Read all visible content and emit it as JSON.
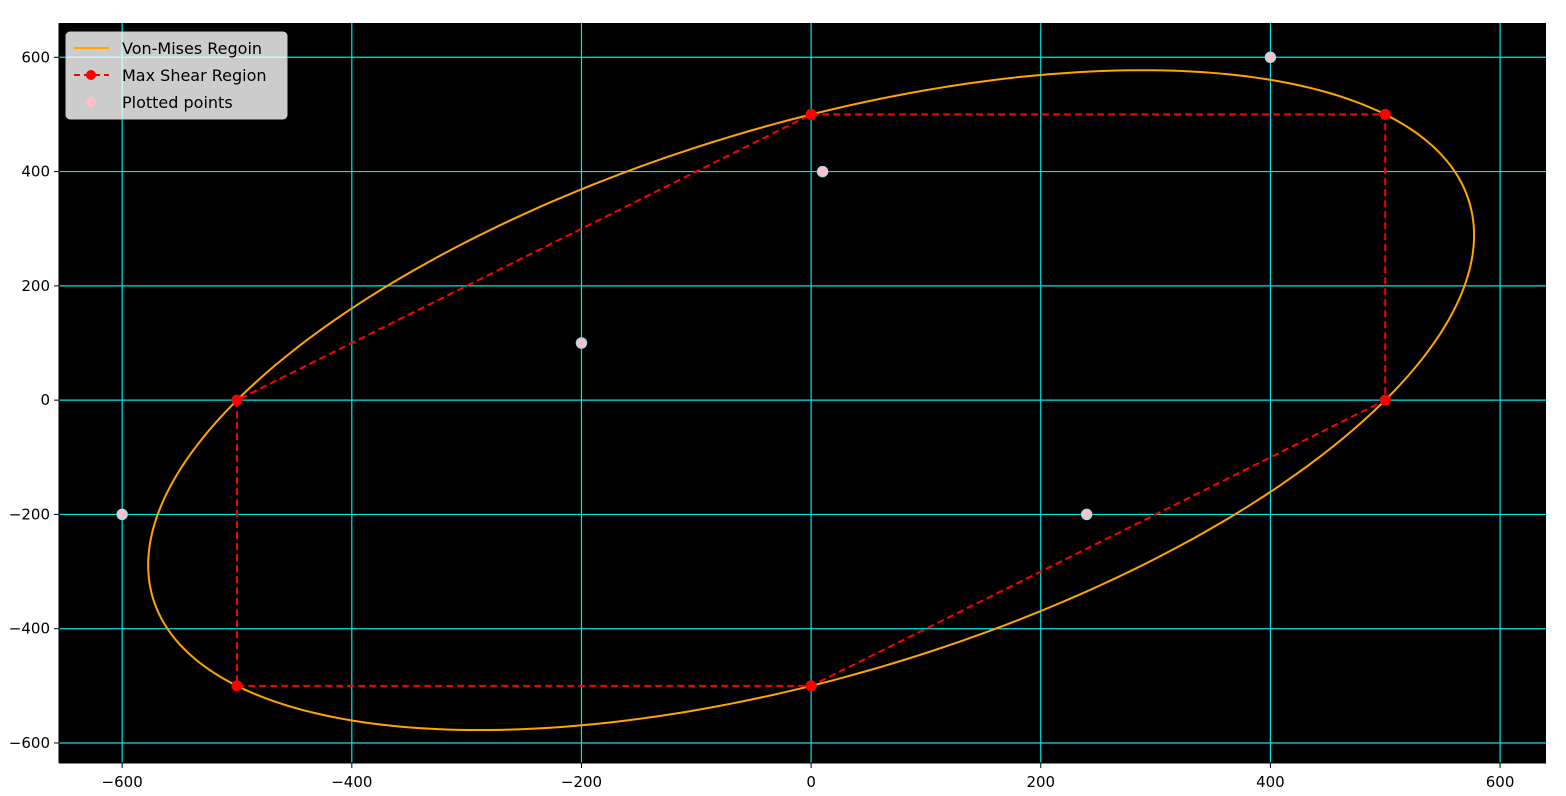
{
  "chart_data": {
    "type": "line",
    "title": "",
    "xlabel": "",
    "ylabel": "",
    "xlim": [
      -655,
      640
    ],
    "ylim": [
      -635,
      660
    ],
    "x_ticks": [
      -600,
      -400,
      -200,
      0,
      200,
      400,
      600
    ],
    "y_ticks": [
      -600,
      -400,
      -200,
      0,
      200,
      400,
      600
    ],
    "x_tick_labels": [
      "−600",
      "−400",
      "−200",
      "0",
      "200",
      "400",
      "600"
    ],
    "y_tick_labels": [
      "−600",
      "−400",
      "−200",
      "0",
      "200",
      "400",
      "600"
    ],
    "grid": true,
    "legend_position": "upper-left",
    "colors": {
      "plot_background": "#000000",
      "grid": "#00e5e5",
      "von_mises": "#ffa500",
      "max_shear": "#ff0000",
      "points": "#ffc0cb",
      "points_edge": "#add8e6"
    },
    "series": [
      {
        "name": "Von-Mises Regoin",
        "kind": "ellipse",
        "yield_strength": 500,
        "equation": "x^2 - x*y + y^2 = 500^2"
      },
      {
        "name": "Max Shear Region",
        "kind": "polygon",
        "x": [
          0,
          500,
          500,
          0,
          -500,
          -500,
          0
        ],
        "y": [
          500,
          500,
          0,
          -500,
          -500,
          0,
          500
        ]
      },
      {
        "name": "Plotted points",
        "kind": "scatter",
        "x": [
          400,
          10,
          -200,
          -600,
          240
        ],
        "y": [
          600,
          400,
          100,
          -200,
          -200
        ]
      }
    ],
    "legend": [
      "Von-Mises Regoin",
      "Max Shear Region",
      "Plotted points"
    ]
  }
}
